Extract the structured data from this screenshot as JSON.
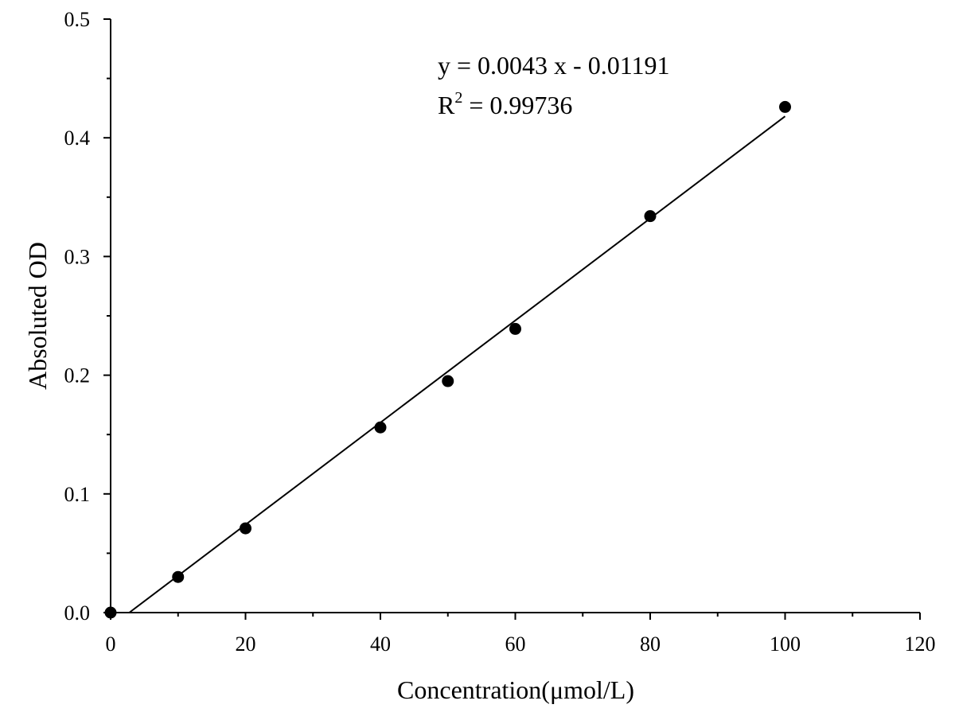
{
  "chart_data": {
    "type": "scatter",
    "title": "",
    "xlabel": "Concentration(μmol/L)",
    "ylabel": "Absoluted OD",
    "xlim": [
      0,
      120
    ],
    "ylim": [
      0,
      0.5
    ],
    "x_ticks": [
      0,
      20,
      40,
      60,
      80,
      100,
      120
    ],
    "x_tick_labels": [
      "0",
      "20",
      "40",
      "60",
      "80",
      "100",
      "120"
    ],
    "y_ticks": [
      0,
      0.1,
      0.2,
      0.3,
      0.4,
      0.5
    ],
    "y_tick_labels": [
      "0.0",
      "0.1",
      "0.2",
      "0.3",
      "0.4",
      "0.5"
    ],
    "grid": false,
    "legend": "none",
    "marker_color": "#000000",
    "series": [
      {
        "x": [
          0,
          10,
          20,
          40,
          50,
          60,
          80,
          100
        ],
        "y": [
          0.0,
          0.03,
          0.071,
          0.156,
          0.195,
          0.239,
          0.334,
          0.426
        ]
      }
    ],
    "fit_line": {
      "slope": 0.0043,
      "intercept": -0.01191,
      "x_range": [
        0,
        100
      ]
    },
    "annotations": {
      "equation": "y = 0.0043 x - 0.01191",
      "r2_prefix": "R",
      "r2_superscript": "2",
      "r2_value": " = 0.99736"
    }
  }
}
